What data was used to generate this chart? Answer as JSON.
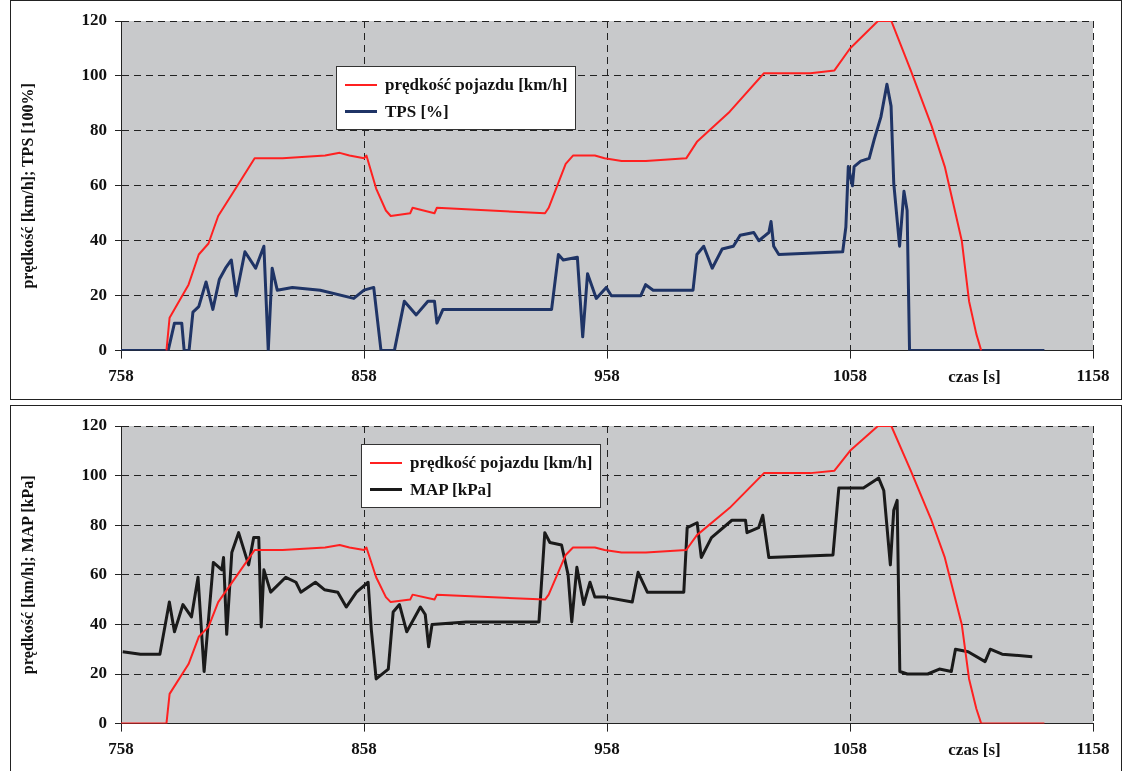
{
  "chart_data": [
    {
      "type": "line",
      "ylabel": "prędkość [km/h]; TPS [100%]",
      "xlabel": "czas [s]",
      "xlim": [
        758,
        1158
      ],
      "xticks": [
        758,
        858,
        958,
        1058,
        1158
      ],
      "ylim": [
        0,
        120
      ],
      "yticks": [
        0,
        20,
        40,
        60,
        80,
        100,
        120
      ],
      "grid": true,
      "legend": "top",
      "marker": "none",
      "line_style": "solid",
      "series": [
        {
          "name": "prędkość pojazdu [km/h]",
          "color": "#ff2020",
          "x": [
            776.7,
            778,
            785.8,
            790,
            794,
            798,
            806.6,
            813,
            824.5,
            842,
            848,
            852,
            858,
            859,
            863,
            867,
            869,
            877,
            878,
            887,
            888,
            932.5,
            934,
            941,
            944,
            953,
            957,
            964,
            974,
            990.6,
            995,
            1008.5,
            1022.6,
            1041.7,
            1051.6,
            1058,
            1069.5,
            1075,
            1083,
            1091.5,
            1097,
            1104,
            1107,
            1110,
            1112
          ],
          "values": [
            0,
            12,
            24,
            35,
            39,
            49,
            61,
            70,
            70,
            71,
            72,
            71,
            70,
            71,
            59,
            51,
            49,
            50,
            52,
            50,
            52,
            50,
            52,
            68,
            71,
            71,
            70,
            69,
            69,
            70,
            76,
            87,
            101,
            101,
            102,
            110,
            120,
            120,
            102,
            82,
            67,
            40,
            18,
            6,
            0
          ]
        },
        {
          "name": "TPS [%]",
          "color": "#1f3466",
          "x": [
            758,
            777.4,
            780,
            783,
            784,
            786,
            787.6,
            790,
            793,
            795.8,
            798.5,
            801,
            803.4,
            805.4,
            809,
            813.4,
            816.8,
            818.6,
            820.2,
            822.3,
            828.5,
            840,
            853.8,
            858,
            862,
            865,
            870.5,
            874.6,
            879.5,
            884.3,
            887,
            888,
            890.5,
            935.2,
            938,
            940,
            945.8,
            948,
            950,
            953.6,
            957.7,
            959.8,
            971.9,
            973.9,
            977,
            993.4,
            995,
            997.8,
            1001.3,
            1005.4,
            1010,
            1012.8,
            1018.4,
            1020.5,
            1024.6,
            1025.5,
            1026.6,
            1028.7,
            1055,
            1056.3,
            1057.3,
            1059,
            1059.7,
            1062.4,
            1065.9,
            1068,
            1070.7,
            1073.2,
            1074.9,
            1076,
            1078.4,
            1080.2,
            1081.5,
            1082.5,
            1138
          ],
          "values": [
            0,
            0,
            10,
            10,
            0,
            0,
            14,
            16,
            25,
            15,
            26,
            30,
            33,
            20,
            36,
            30,
            38,
            0,
            30,
            22,
            23,
            22,
            19,
            22,
            23,
            0,
            0,
            18,
            13,
            18,
            18,
            10,
            15,
            15,
            35,
            33,
            34,
            5,
            28,
            19,
            23,
            20,
            20,
            24,
            22,
            22,
            35,
            38,
            30,
            37,
            38,
            42,
            43,
            40,
            43,
            47,
            38,
            35,
            36,
            45,
            67,
            60,
            67,
            69,
            70,
            77,
            85,
            97,
            89,
            61,
            38,
            58,
            51,
            0,
            0
          ]
        }
      ]
    },
    {
      "type": "line",
      "ylabel": "prędkość [km/h]; MAP [kPa]",
      "xlabel": "czas [s]",
      "xlim": [
        758,
        1158
      ],
      "xticks": [
        758,
        858,
        958,
        1058,
        1158
      ],
      "ylim": [
        0,
        120
      ],
      "yticks": [
        0,
        20,
        40,
        60,
        80,
        100,
        120
      ],
      "grid": true,
      "legend": "top",
      "marker": "none",
      "line_style": "solid",
      "series": [
        {
          "name": "prędkość pojazdu [km/h]",
          "color": "#ff2020",
          "x": [
            758,
            776.7,
            778,
            785.8,
            790,
            794,
            798,
            806.6,
            813,
            824.5,
            842,
            848,
            852,
            858,
            859,
            863,
            867,
            869,
            877,
            878,
            887,
            888,
            932.5,
            934,
            941,
            944,
            953,
            957,
            964,
            974,
            990.6,
            995,
            1008.5,
            1022.6,
            1041.7,
            1051.6,
            1058,
            1069.5,
            1075,
            1083,
            1091.5,
            1097,
            1104,
            1107,
            1110,
            1112,
            1138
          ],
          "values": [
            0,
            0,
            12,
            24,
            35,
            39,
            49,
            61,
            70,
            70,
            71,
            72,
            71,
            70,
            71,
            59,
            51,
            49,
            50,
            52,
            50,
            52,
            50,
            52,
            68,
            71,
            71,
            70,
            69,
            69,
            70,
            76,
            87,
            101,
            101,
            102,
            110,
            120,
            120,
            102,
            82,
            67,
            40,
            18,
            6,
            0,
            0
          ]
        },
        {
          "name": "MAP [kPa]",
          "color": "#1a1a1a",
          "x": [
            758.7,
            766,
            774,
            777.9,
            780,
            783.5,
            787,
            789.7,
            792.2,
            796,
            799.5,
            800.2,
            801.5,
            803.6,
            806.4,
            810.5,
            812.6,
            814.7,
            815.7,
            816.8,
            819.6,
            825.8,
            830,
            832,
            838,
            841.7,
            847.2,
            850.7,
            854.9,
            859.7,
            861,
            863,
            868,
            870,
            872.6,
            875.6,
            881.2,
            883.2,
            884.6,
            886,
            900,
            930,
            932.4,
            934.5,
            939.3,
            942,
            943.5,
            945.6,
            948.4,
            951,
            953,
            957.2,
            968.4,
            970.8,
            974.6,
            989.6,
            991,
            995.1,
            996.8,
            1001,
            1009.4,
            1015,
            1015.6,
            1020.4,
            1022.1,
            1024.6,
            1051,
            1053.4,
            1056.6,
            1063.5,
            1069.8,
            1071.9,
            1074.6,
            1076,
            1077.4,
            1078.5,
            1081.6,
            1090,
            1094.8,
            1099.7,
            1101.4,
            1106.6,
            1113.6,
            1115.7,
            1120.6,
            1133
          ],
          "values": [
            29,
            28,
            28,
            49,
            37,
            48,
            43,
            59,
            21,
            65,
            62,
            67,
            36,
            69,
            77,
            64,
            75,
            75,
            39,
            62,
            53,
            59,
            57,
            53,
            57,
            54,
            53,
            47,
            53,
            57,
            38,
            18,
            22,
            45,
            48,
            37,
            47,
            44,
            31,
            40,
            41,
            41,
            77,
            73,
            72,
            60,
            41,
            63,
            48,
            57,
            51,
            51,
            49,
            61,
            53,
            53,
            79,
            81,
            67,
            75,
            82,
            82,
            77,
            79,
            84,
            67,
            68,
            95,
            95,
            95,
            99,
            94,
            64,
            86,
            90,
            21,
            20,
            20,
            22,
            21,
            30,
            29,
            25,
            30,
            28,
            27
          ]
        }
      ]
    }
  ]
}
